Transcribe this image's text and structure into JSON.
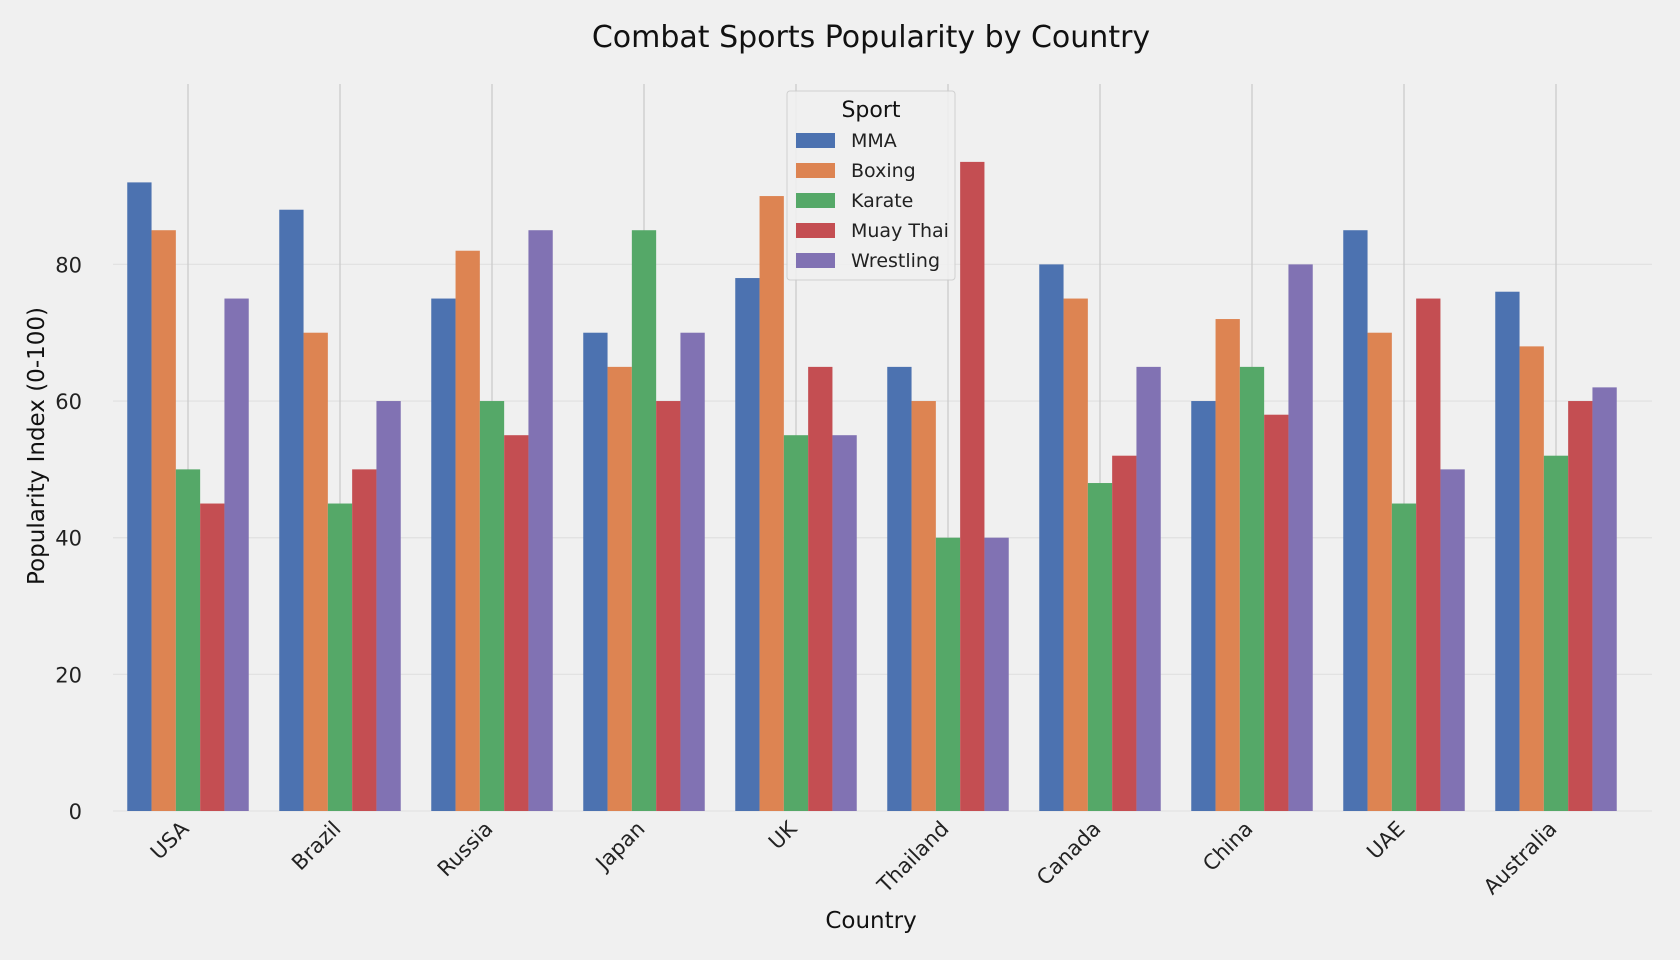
{
  "chart_data": {
    "type": "bar",
    "title": "Combat Sports Popularity by Country",
    "xlabel": "Country",
    "ylabel": "Popularity Index (0-100)",
    "ylim": [
      0,
      100
    ],
    "yticks": [
      0,
      20,
      40,
      60,
      80
    ],
    "grid": true,
    "legend": {
      "title": "Sport",
      "placement": "top-center"
    },
    "categories": [
      "USA",
      "Brazil",
      "Russia",
      "Japan",
      "UK",
      "Thailand",
      "Canada",
      "China",
      "UAE",
      "Australia"
    ],
    "series": [
      {
        "name": "MMA",
        "color": "#4c72b0",
        "values": [
          92,
          88,
          75,
          70,
          78,
          65,
          80,
          60,
          85,
          76
        ]
      },
      {
        "name": "Boxing",
        "color": "#dd8452",
        "values": [
          85,
          70,
          82,
          65,
          90,
          60,
          75,
          72,
          70,
          68
        ]
      },
      {
        "name": "Karate",
        "color": "#55a868",
        "values": [
          50,
          45,
          60,
          85,
          55,
          40,
          48,
          65,
          45,
          52
        ]
      },
      {
        "name": "Muay Thai",
        "color": "#c44e52",
        "values": [
          45,
          50,
          55,
          60,
          65,
          95,
          52,
          58,
          75,
          60
        ]
      },
      {
        "name": "Wrestling",
        "color": "#8172b3",
        "values": [
          75,
          60,
          85,
          70,
          55,
          40,
          65,
          80,
          50,
          62
        ]
      }
    ]
  }
}
